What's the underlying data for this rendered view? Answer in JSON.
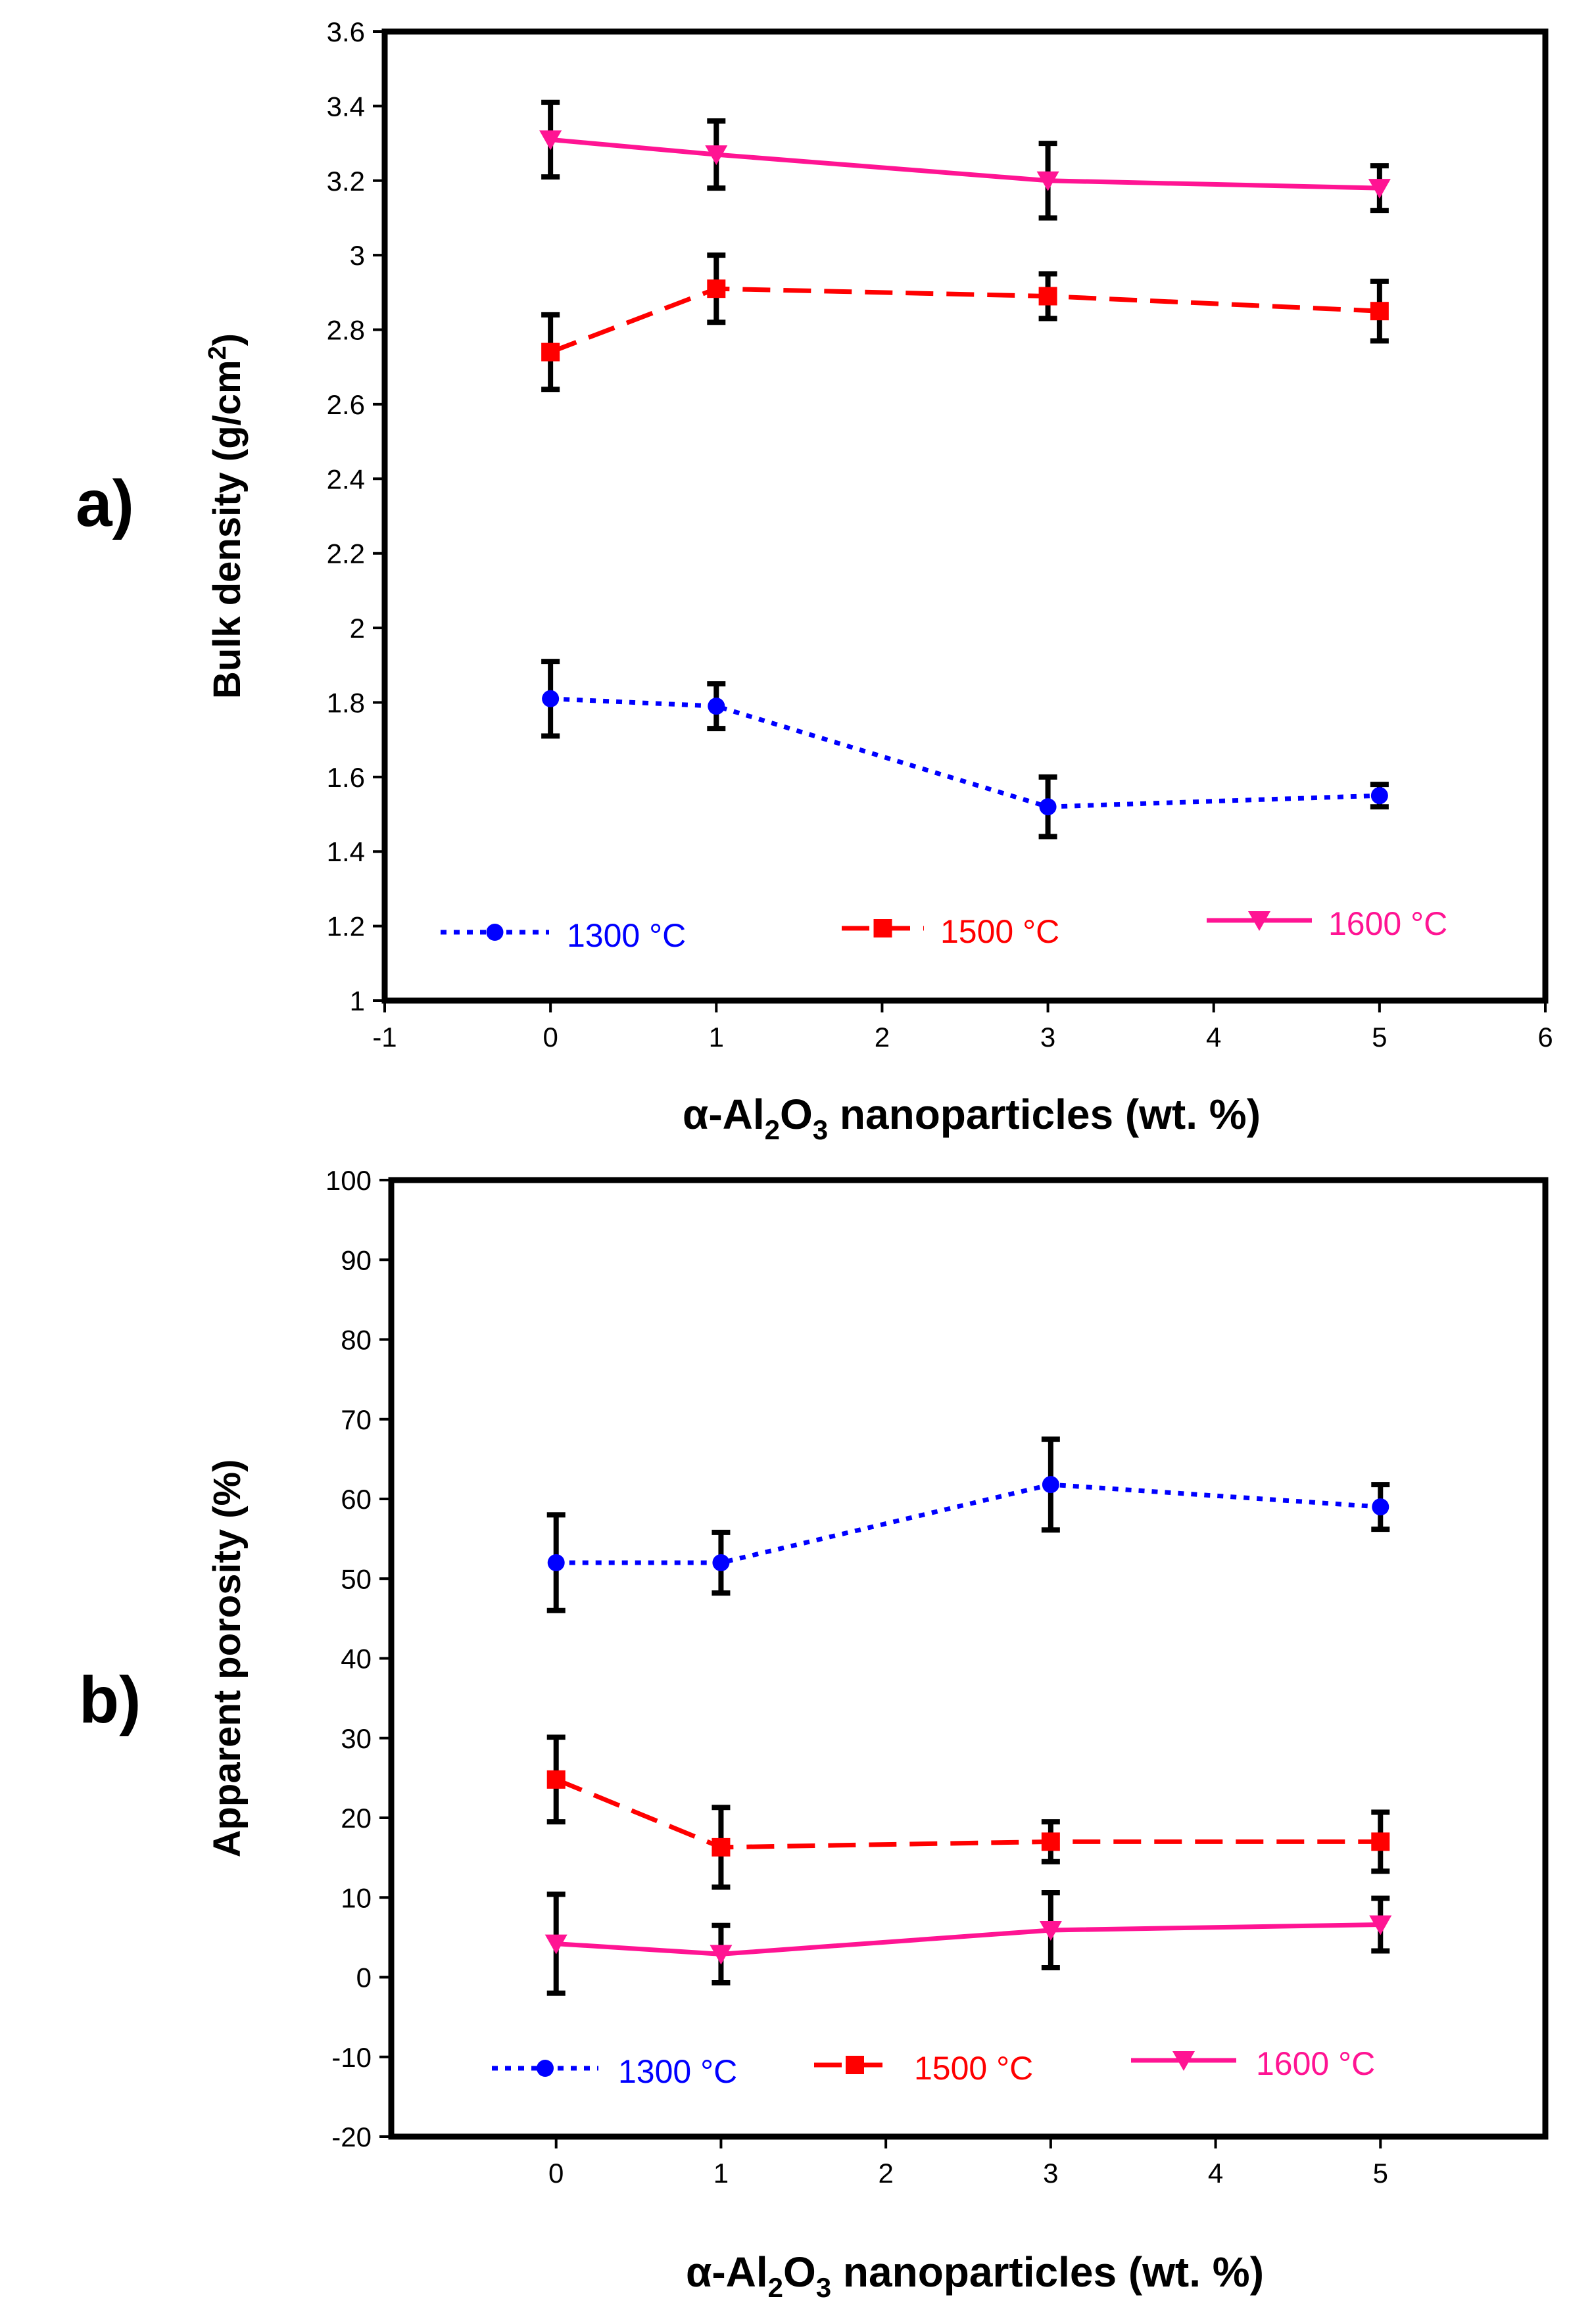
{
  "chart_data": [
    {
      "panel_label": "a)",
      "type": "line",
      "xlabel_parts": [
        "α-Al",
        "2",
        "O",
        "3",
        " nanoparticles (wt. %)"
      ],
      "ylabel_parts": [
        "Bulk density (g/cm",
        "2",
        ")"
      ],
      "xlim": [
        -1,
        6
      ],
      "ylim": [
        1,
        3.6
      ],
      "xticks": [
        -1,
        0,
        1,
        2,
        3,
        4,
        5,
        6
      ],
      "yticks": [
        1,
        1.2,
        1.4,
        1.6,
        1.8,
        2,
        2.2,
        2.4,
        2.6,
        2.8,
        3,
        3.2,
        3.4,
        3.6
      ],
      "x": [
        0,
        1,
        3,
        5
      ],
      "series": [
        {
          "name": "1300 °C",
          "color": "#0000ff",
          "marker": "circle",
          "dash": "dotted",
          "values": [
            1.81,
            1.79,
            1.52,
            1.55
          ],
          "errors": [
            0.1,
            0.06,
            0.08,
            0.03
          ]
        },
        {
          "name": "1500 °C",
          "color": "#ff0000",
          "marker": "square",
          "dash": "dashed",
          "values": [
            2.74,
            2.91,
            2.89,
            2.85
          ],
          "errors": [
            0.1,
            0.09,
            0.06,
            0.08
          ]
        },
        {
          "name": "1600 °C",
          "color": "#ff1493",
          "marker": "triangle-down",
          "dash": "solid",
          "values": [
            3.31,
            3.27,
            3.2,
            3.18
          ],
          "errors": [
            0.1,
            0.09,
            0.1,
            0.06
          ]
        }
      ]
    },
    {
      "panel_label": "b)",
      "type": "line",
      "xlabel_parts": [
        "α-Al",
        "2",
        "O",
        "3",
        " nanoparticles (wt. %)"
      ],
      "ylabel_parts": [
        "Apparent porosity (%)"
      ],
      "xlim": [
        -1,
        6
      ],
      "ylim": [
        -20,
        100
      ],
      "xticks": [
        0,
        1,
        2,
        3,
        4,
        5
      ],
      "yticks": [
        -20,
        -10,
        0,
        10,
        20,
        30,
        40,
        50,
        60,
        70,
        80,
        90,
        100
      ],
      "x": [
        0,
        1,
        3,
        5
      ],
      "series": [
        {
          "name": "1300 °C",
          "color": "#0000ff",
          "marker": "circle",
          "dash": "dotted",
          "values": [
            52,
            52,
            61.8,
            59
          ],
          "errors": [
            6,
            3.8,
            5.7,
            2.8
          ]
        },
        {
          "name": "1500 °C",
          "color": "#ff0000",
          "marker": "square",
          "dash": "dashed",
          "values": [
            24.8,
            16.3,
            17,
            17
          ],
          "errors": [
            5.3,
            5,
            2.5,
            3.7
          ]
        },
        {
          "name": "1600 °C",
          "color": "#ff1493",
          "marker": "triangle-down",
          "dash": "solid",
          "values": [
            4.2,
            2.9,
            5.9,
            6.6
          ],
          "errors": [
            6.2,
            3.6,
            4.7,
            3.3
          ]
        }
      ]
    }
  ]
}
